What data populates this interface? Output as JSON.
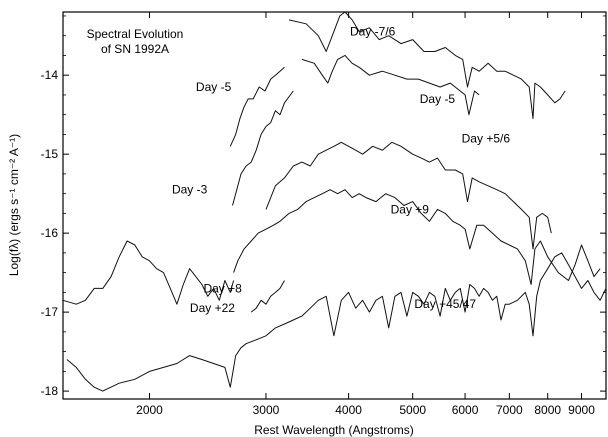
{
  "chart_data": {
    "type": "line",
    "title_lines": [
      "Spectral Evolution",
      "of SN 1992A"
    ],
    "xlabel": "Rest Wavelength (Angstroms)",
    "ylabel": "Log(fλ)  (ergs s⁻¹ cm⁻² A⁻¹)",
    "x_scale": "log",
    "xlim": [
      1480,
      9800
    ],
    "ylim": [
      -18.1,
      -13.2
    ],
    "x_ticks": [
      {
        "value": 2000,
        "label": "2000"
      },
      {
        "value": 3000,
        "label": "3000"
      },
      {
        "value": 4000,
        "label": "4000"
      },
      {
        "value": 5000,
        "label": "5000"
      },
      {
        "value": 6000,
        "label": "6000"
      },
      {
        "value": 7000,
        "label": "7000"
      },
      {
        "value": 8000,
        "label": "8000"
      },
      {
        "value": 9000,
        "label": "9000"
      }
    ],
    "y_ticks": [
      {
        "value": -14,
        "label": "-14"
      },
      {
        "value": -15,
        "label": "-15"
      },
      {
        "value": -16,
        "label": "-16"
      },
      {
        "value": -17,
        "label": "-17"
      },
      {
        "value": -18,
        "label": "-18"
      }
    ],
    "series": [
      {
        "name": "Day -7/6",
        "x": [
          3250,
          3450,
          3600,
          3700,
          3780,
          3880,
          3950,
          4050,
          4150,
          4300,
          4450,
          4600,
          4800,
          5000,
          5200,
          5400,
          5600,
          5800,
          5950,
          6050,
          6150,
          6300,
          6500,
          6700,
          6900,
          7100,
          7300,
          7500,
          7600,
          7650,
          7800,
          8000,
          8200,
          8350,
          8500
        ],
        "y": [
          -13.3,
          -13.35,
          -13.5,
          -13.7,
          -13.5,
          -13.25,
          -13.2,
          -13.3,
          -13.45,
          -13.4,
          -13.55,
          -13.5,
          -13.6,
          -13.55,
          -13.7,
          -13.7,
          -13.65,
          -13.75,
          -13.8,
          -14.15,
          -13.9,
          -13.95,
          -13.85,
          -13.95,
          -13.95,
          -14.0,
          -14.05,
          -14.15,
          -14.55,
          -14.1,
          -14.15,
          -14.25,
          -14.35,
          -14.3,
          -14.2
        ]
      },
      {
        "name": "Day -5",
        "x": [
          3400,
          3550,
          3650,
          3720,
          3780,
          3850,
          3950,
          4050,
          4150,
          4300,
          4500,
          4700,
          4900,
          5100,
          5300,
          5500,
          5700,
          5900,
          6000,
          6080,
          6200,
          6300
        ],
        "y": [
          -13.8,
          -13.85,
          -14.0,
          -14.1,
          -13.95,
          -13.8,
          -13.75,
          -13.85,
          -13.9,
          -14.0,
          -13.95,
          -14.0,
          -14.05,
          -14.05,
          -14.1,
          -14.15,
          -14.1,
          -14.2,
          -14.25,
          -14.5,
          -14.2,
          -14.25
        ]
      },
      {
        "name": "Day -5",
        "x": [
          2650,
          2700,
          2740,
          2780,
          2820,
          2870,
          2930,
          2990,
          3050,
          3100,
          3150,
          3200
        ],
        "y": [
          -14.9,
          -14.75,
          -14.55,
          -14.4,
          -14.3,
          -14.3,
          -14.15,
          -14.2,
          -14.05,
          -14.0,
          -13.95,
          -13.9
        ]
      },
      {
        "name": "Day -3",
        "x": [
          2670,
          2700,
          2750,
          2800,
          2850,
          2900,
          2950,
          3000,
          3050,
          3100,
          3150,
          3200,
          3300
        ],
        "y": [
          -15.65,
          -15.5,
          -15.25,
          -15.15,
          -15.1,
          -14.95,
          -14.75,
          -14.65,
          -14.6,
          -14.45,
          -14.5,
          -14.35,
          -14.2
        ]
      },
      {
        "name": "Day +5/6",
        "x": [
          3000,
          3100,
          3200,
          3300,
          3400,
          3500,
          3600,
          3700,
          3800,
          3900,
          4000,
          4100,
          4200,
          4350,
          4500,
          4650,
          4800,
          5000,
          5150,
          5300,
          5450,
          5600,
          5800,
          5950,
          6050,
          6150,
          6300,
          6500,
          6700,
          6900,
          7100,
          7300,
          7500,
          7600,
          7700,
          7850,
          8000,
          8100
        ],
        "y": [
          -15.7,
          -15.4,
          -15.3,
          -15.15,
          -15.1,
          -15.15,
          -15.0,
          -14.95,
          -14.9,
          -14.85,
          -14.9,
          -14.95,
          -15.0,
          -14.9,
          -14.95,
          -14.85,
          -14.9,
          -15.0,
          -15.05,
          -15.1,
          -15.05,
          -15.2,
          -15.2,
          -15.25,
          -15.6,
          -15.3,
          -15.35,
          -15.4,
          -15.45,
          -15.5,
          -15.6,
          -15.7,
          -15.8,
          -16.2,
          -15.8,
          -15.75,
          -15.8,
          -16.0
        ]
      },
      {
        "name": "Day +9",
        "x": [
          2680,
          2720,
          2780,
          2850,
          2920,
          3000,
          3080,
          3150,
          3250,
          3350,
          3450,
          3550,
          3650,
          3750,
          3850,
          3950,
          4050,
          4150,
          4250,
          4400,
          4550,
          4700,
          4850,
          5000,
          5150,
          5300,
          5450,
          5600,
          5750,
          5900,
          6000,
          6100,
          6250,
          6400,
          6600,
          6800,
          7000,
          7200,
          7400,
          7550,
          7650,
          7800,
          8000,
          8300,
          8600,
          8800,
          9000,
          9200,
          9400,
          9600
        ],
        "y": [
          -16.5,
          -16.35,
          -16.2,
          -16.1,
          -16.0,
          -15.95,
          -15.9,
          -15.85,
          -15.75,
          -15.7,
          -15.6,
          -15.55,
          -15.5,
          -15.45,
          -15.5,
          -15.45,
          -15.55,
          -15.5,
          -15.55,
          -15.6,
          -15.5,
          -15.55,
          -15.65,
          -15.6,
          -15.75,
          -15.85,
          -15.7,
          -15.75,
          -15.85,
          -15.9,
          -15.95,
          -16.2,
          -15.9,
          -15.9,
          -16.0,
          -16.1,
          -16.15,
          -16.2,
          -16.35,
          -16.65,
          -16.2,
          -16.1,
          -16.3,
          -16.5,
          -16.6,
          -16.4,
          -16.15,
          -16.35,
          -16.55,
          -16.45
        ]
      },
      {
        "name": "Day +8",
        "x": [
          1480,
          1550,
          1600,
          1650,
          1700,
          1750,
          1800,
          1850,
          1900,
          1950,
          2000,
          2050,
          2100,
          2150,
          2200,
          2250,
          2300,
          2350,
          2400,
          2450,
          2500,
          2550,
          2600,
          2650,
          2680
        ],
        "y": [
          -16.85,
          -16.9,
          -16.85,
          -16.7,
          -16.7,
          -16.55,
          -16.3,
          -16.1,
          -16.15,
          -16.3,
          -16.35,
          -16.45,
          -16.5,
          -16.7,
          -16.9,
          -16.65,
          -16.45,
          -16.55,
          -16.65,
          -16.8,
          -16.7,
          -16.85,
          -16.6,
          -16.75,
          -16.6
        ]
      },
      {
        "name": "Day +22",
        "x": [
          2850,
          2900,
          2950,
          3000,
          3050,
          3100,
          3150,
          3200
        ],
        "y": [
          -17.0,
          -16.95,
          -16.85,
          -16.9,
          -16.8,
          -16.75,
          -16.7,
          -16.6
        ]
      },
      {
        "name": "Day +45/47",
        "x": [
          1500,
          1550,
          1600,
          1650,
          1700,
          1800,
          1900,
          2000,
          2100,
          2200,
          2300,
          2400,
          2500,
          2600,
          2650,
          2700,
          2750,
          2800,
          2900,
          3000,
          3100,
          3200,
          3300,
          3400,
          3500,
          3600,
          3700,
          3800,
          3900,
          4000,
          4100,
          4200,
          4300,
          4400,
          4500,
          4600,
          4700,
          4800,
          4900,
          5000,
          5100,
          5200,
          5300,
          5400,
          5500,
          5600,
          5700,
          5800,
          5900,
          6000,
          6100,
          6200,
          6300,
          6400,
          6500,
          6600,
          6700,
          6800,
          6900,
          7000,
          7200,
          7400,
          7500,
          7600,
          7700,
          7800,
          8000,
          8200,
          8400,
          8600,
          8800,
          9000,
          9200,
          9400,
          9600,
          9800
        ],
        "y": [
          -17.6,
          -17.7,
          -17.85,
          -17.95,
          -18.0,
          -17.9,
          -17.85,
          -17.75,
          -17.7,
          -17.65,
          -17.55,
          -17.6,
          -17.65,
          -17.7,
          -17.95,
          -17.55,
          -17.45,
          -17.4,
          -17.35,
          -17.3,
          -17.2,
          -17.15,
          -17.1,
          -17.05,
          -16.95,
          -16.85,
          -16.8,
          -17.3,
          -16.85,
          -16.75,
          -16.95,
          -16.85,
          -17.0,
          -16.85,
          -16.8,
          -17.2,
          -16.8,
          -16.75,
          -17.05,
          -16.75,
          -16.8,
          -16.9,
          -16.75,
          -16.8,
          -17.05,
          -16.7,
          -16.85,
          -16.75,
          -16.7,
          -17.0,
          -16.65,
          -16.7,
          -16.8,
          -16.7,
          -16.75,
          -16.85,
          -16.8,
          -17.1,
          -16.9,
          -16.9,
          -16.85,
          -16.75,
          -16.9,
          -17.3,
          -16.8,
          -16.6,
          -16.45,
          -16.3,
          -16.25,
          -16.4,
          -16.55,
          -16.7,
          -16.6,
          -16.75,
          -16.85,
          -16.7
        ]
      }
    ],
    "labels": [
      {
        "text": "Day -7/6",
        "x": 4350,
        "y": -13.5
      },
      {
        "text": "Day -5",
        "x": 2500,
        "y": -14.2
      },
      {
        "text": "Day -5",
        "x": 5450,
        "y": -14.35
      },
      {
        "text": "Day +5/6",
        "x": 6450,
        "y": -14.85
      },
      {
        "text": "Day -3",
        "x": 2300,
        "y": -15.5
      },
      {
        "text": "Day +9",
        "x": 4950,
        "y": -15.75
      },
      {
        "text": "Day +8",
        "x": 2580,
        "y": -16.75
      },
      {
        "text": "Day +22",
        "x": 2490,
        "y": -17.0
      },
      {
        "text": "Day +45/47",
        "x": 5600,
        "y": -16.95
      }
    ],
    "grid": false,
    "legend": "none"
  }
}
